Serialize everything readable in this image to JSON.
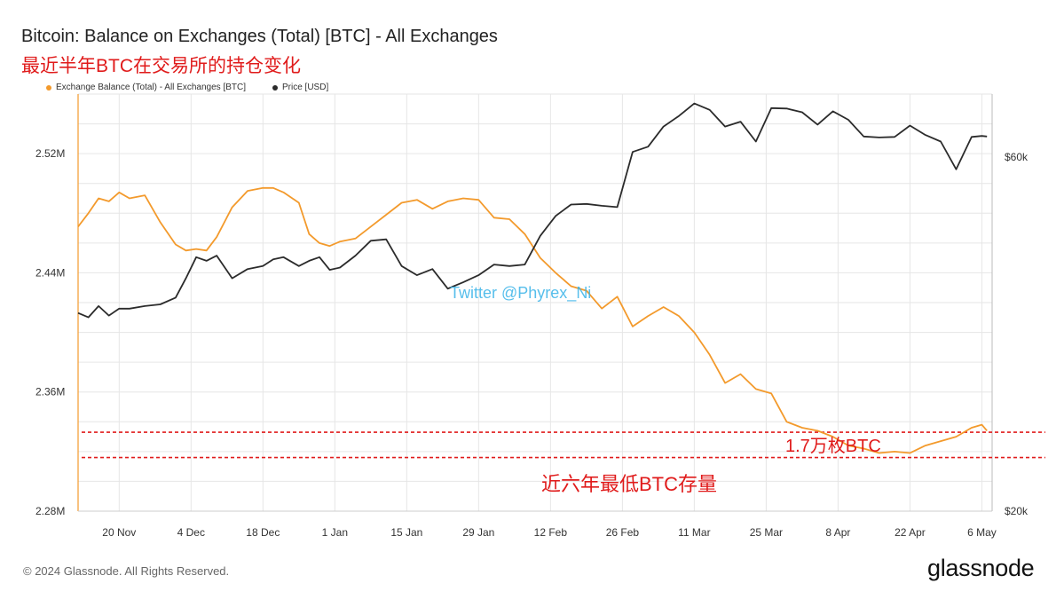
{
  "title": "Bitcoin: Balance on Exchanges (Total) [BTC] - All Exchanges",
  "subtitle": "最近半年BTC在交易所的持仓变化",
  "watermark": "Twitter @Phyrex_Ni",
  "annotations": {
    "diff": "1.7万枚BTC",
    "low": "近六年最低BTC存量"
  },
  "footer": {
    "copyright": "© 2024 Glassnode. All Rights Reserved.",
    "brand": "glassnode"
  },
  "colors": {
    "balance": "#f39a2c",
    "price": "#2b2b2b",
    "annotation": "#e01b1b",
    "watermark": "#39b3e8",
    "grid": "#e6e6e6"
  },
  "chart_data": {
    "type": "line",
    "legend": [
      "Exchange Balance (Total) - All Exchanges [BTC]",
      "Price [USD]"
    ],
    "legend_position": "top-left",
    "grid": true,
    "y_left": {
      "ticks": [
        "2.52M",
        "2.44M",
        "2.36M",
        "2.28M"
      ],
      "tick_values": [
        2520000,
        2440000,
        2360000,
        2280000
      ],
      "range": [
        2280000,
        2560000
      ]
    },
    "y_right": {
      "ticks": [
        "$60k",
        "$20k"
      ],
      "tick_values": [
        60000,
        20000
      ],
      "scale": "log",
      "range": [
        20000,
        73000
      ]
    },
    "x_ticks": [
      "20 Nov",
      "4 Dec",
      "18 Dec",
      "1 Jan",
      "15 Jan",
      "29 Jan",
      "12 Feb",
      "26 Feb",
      "11 Mar",
      "25 Mar",
      "8 Apr",
      "22 Apr",
      "6 May"
    ],
    "x_range": [
      "2023-11-12",
      "2024-05-08"
    ],
    "reference_lines": [
      {
        "label": "upper",
        "value": 2333000
      },
      {
        "label": "lower",
        "value": 2316000
      }
    ],
    "series": [
      {
        "name": "Exchange Balance (Total) - All Exchanges [BTC]",
        "axis": "left",
        "x": [
          "2023-11-12",
          "2023-11-14",
          "2023-11-16",
          "2023-11-18",
          "2023-11-20",
          "2023-11-22",
          "2023-11-25",
          "2023-11-28",
          "2023-12-01",
          "2023-12-03",
          "2023-12-05",
          "2023-12-07",
          "2023-12-09",
          "2023-12-12",
          "2023-12-15",
          "2023-12-18",
          "2023-12-20",
          "2023-12-22",
          "2023-12-25",
          "2023-12-27",
          "2023-12-29",
          "2023-12-31",
          "2024-01-02",
          "2024-01-05",
          "2024-01-08",
          "2024-01-11",
          "2024-01-14",
          "2024-01-17",
          "2024-01-20",
          "2024-01-23",
          "2024-01-26",
          "2024-01-29",
          "2024-02-01",
          "2024-02-04",
          "2024-02-07",
          "2024-02-10",
          "2024-02-13",
          "2024-02-16",
          "2024-02-19",
          "2024-02-22",
          "2024-02-25",
          "2024-02-28",
          "2024-03-02",
          "2024-03-05",
          "2024-03-08",
          "2024-03-11",
          "2024-03-14",
          "2024-03-17",
          "2024-03-20",
          "2024-03-23",
          "2024-03-26",
          "2024-03-29",
          "2024-04-01",
          "2024-04-04",
          "2024-04-07",
          "2024-04-10",
          "2024-04-13",
          "2024-04-16",
          "2024-04-19",
          "2024-04-22",
          "2024-04-25",
          "2024-04-28",
          "2024-05-01",
          "2024-05-04",
          "2024-05-06",
          "2024-05-07"
        ],
        "values": [
          2471000,
          2480000,
          2490000,
          2488000,
          2494000,
          2490000,
          2492000,
          2474000,
          2459000,
          2455000,
          2456000,
          2455000,
          2464000,
          2484000,
          2495000,
          2497000,
          2497000,
          2494000,
          2487000,
          2466000,
          2460000,
          2458000,
          2461000,
          2463000,
          2471000,
          2479000,
          2487000,
          2489000,
          2483000,
          2488000,
          2490000,
          2489000,
          2477000,
          2476000,
          2466000,
          2450000,
          2440000,
          2431000,
          2428000,
          2416000,
          2424000,
          2404000,
          2411000,
          2417000,
          2411000,
          2400000,
          2385000,
          2366000,
          2372000,
          2362000,
          2359000,
          2340000,
          2336000,
          2334000,
          2330000,
          2324000,
          2322000,
          2319000,
          2320000,
          2319000,
          2324000,
          2327000,
          2330000,
          2336000,
          2338000,
          2334000
        ]
      },
      {
        "name": "Price [USD]",
        "axis": "right",
        "x": [
          "2023-11-12",
          "2023-11-14",
          "2023-11-16",
          "2023-11-18",
          "2023-11-20",
          "2023-11-22",
          "2023-11-25",
          "2023-11-28",
          "2023-12-01",
          "2023-12-03",
          "2023-12-05",
          "2023-12-07",
          "2023-12-09",
          "2023-12-12",
          "2023-12-15",
          "2023-12-18",
          "2023-12-20",
          "2023-12-22",
          "2023-12-25",
          "2023-12-27",
          "2023-12-29",
          "2023-12-31",
          "2024-01-02",
          "2024-01-05",
          "2024-01-08",
          "2024-01-11",
          "2024-01-14",
          "2024-01-17",
          "2024-01-20",
          "2024-01-23",
          "2024-01-26",
          "2024-01-29",
          "2024-02-01",
          "2024-02-04",
          "2024-02-07",
          "2024-02-10",
          "2024-02-13",
          "2024-02-16",
          "2024-02-19",
          "2024-02-22",
          "2024-02-25",
          "2024-02-28",
          "2024-03-02",
          "2024-03-05",
          "2024-03-08",
          "2024-03-11",
          "2024-03-14",
          "2024-03-17",
          "2024-03-20",
          "2024-03-23",
          "2024-03-26",
          "2024-03-29",
          "2024-04-01",
          "2024-04-04",
          "2024-04-07",
          "2024-04-10",
          "2024-04-13",
          "2024-04-16",
          "2024-04-19",
          "2024-04-22",
          "2024-04-25",
          "2024-04-28",
          "2024-05-01",
          "2024-05-04",
          "2024-05-06",
          "2024-05-07"
        ],
        "values": [
          37000,
          36500,
          37800,
          36700,
          37500,
          37500,
          37800,
          38000,
          38800,
          41200,
          44000,
          43500,
          44200,
          41200,
          42400,
          42800,
          43700,
          44000,
          42800,
          43500,
          44000,
          42300,
          42600,
          44200,
          46300,
          46500,
          42800,
          41600,
          42400,
          39900,
          40700,
          41600,
          43000,
          42800,
          43000,
          47000,
          50000,
          51800,
          51900,
          51600,
          51400,
          61000,
          62000,
          66000,
          68200,
          70900,
          69500,
          66000,
          67000,
          63000,
          69900,
          69800,
          69000,
          66400,
          69200,
          67400,
          64000,
          63800,
          63900,
          66200,
          64300,
          63000,
          57800,
          63900,
          64100,
          64000
        ]
      }
    ]
  }
}
